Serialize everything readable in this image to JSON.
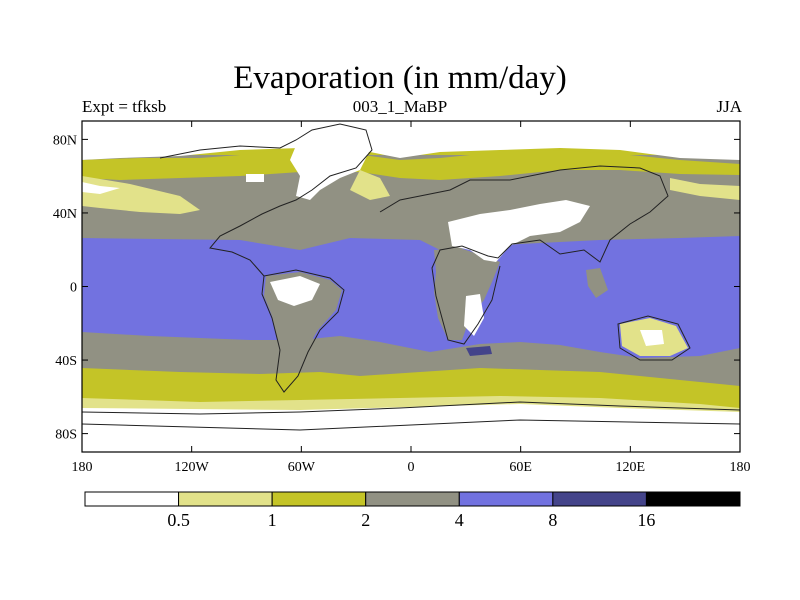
{
  "title": "Evaporation (in mm/day)",
  "subtitle_left": "Expt = tfksb",
  "subtitle_center": "003_1_MaBP",
  "subtitle_right": "JJA",
  "chart_data": {
    "type": "heatmap",
    "variable": "Evaporation",
    "units": "mm/day",
    "x_ticks": [
      {
        "value": -180,
        "label": "180"
      },
      {
        "value": -120,
        "label": "120W"
      },
      {
        "value": -60,
        "label": "60W"
      },
      {
        "value": 0,
        "label": "0"
      },
      {
        "value": 60,
        "label": "60E"
      },
      {
        "value": 120,
        "label": "120E"
      },
      {
        "value": 180,
        "label": "180"
      }
    ],
    "y_ticks": [
      {
        "value": 80,
        "label": "80N"
      },
      {
        "value": 40,
        "label": "40N"
      },
      {
        "value": 0,
        "label": "0"
      },
      {
        "value": -40,
        "label": "40S"
      },
      {
        "value": -80,
        "label": "80S"
      }
    ],
    "xlim": [
      -180,
      180
    ],
    "ylim": [
      -90,
      90
    ],
    "colorbar": {
      "levels": [
        "0.5",
        "1",
        "2",
        "4",
        "8",
        "16"
      ],
      "colors": [
        "#ffffff",
        "#e2e28a",
        "#c4c427",
        "#919183",
        "#7272e0",
        "#44448a",
        "#000000"
      ]
    }
  }
}
